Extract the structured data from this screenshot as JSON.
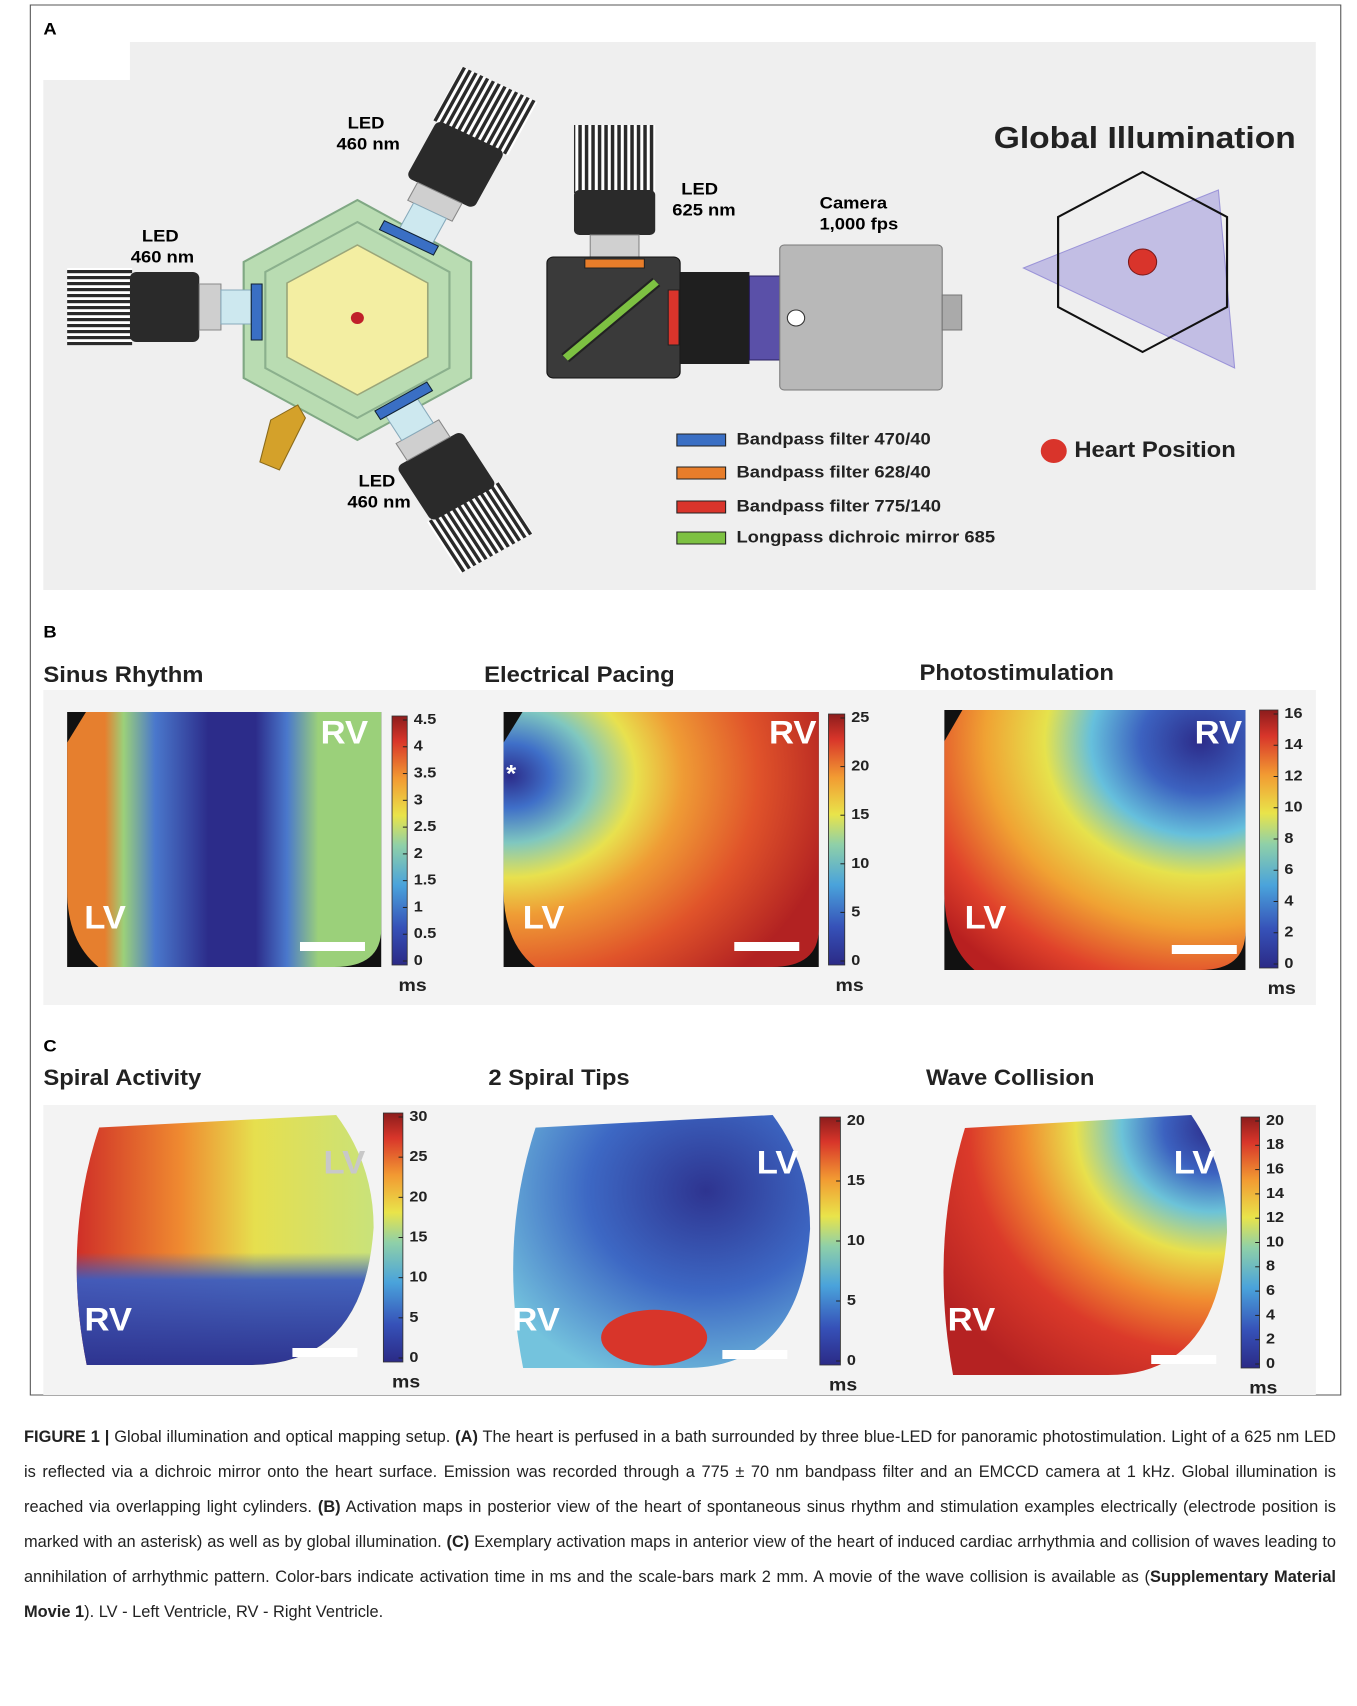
{
  "panel_a": {
    "label": "A",
    "title": "Global Illumination",
    "leds": [
      {
        "name": "LED",
        "wavelength": "460 nm"
      },
      {
        "name": "LED",
        "wavelength": "460 nm"
      },
      {
        "name": "LED",
        "wavelength": "460 nm"
      }
    ],
    "excitation_led": {
      "name": "LED",
      "wavelength": "625 nm"
    },
    "camera": {
      "name": "Camera",
      "rate": "1,000 fps"
    },
    "legend": [
      {
        "label": "Bandpass filter 470/40",
        "color": "#3a6fc4"
      },
      {
        "label": "Bandpass filter 628/40",
        "color": "#e87d2a"
      },
      {
        "label": "Bandpass filter 775/140",
        "color": "#d9342b"
      },
      {
        "label": "Longpass dichroic mirror 685",
        "color": "#7dc142"
      }
    ],
    "heart_position": "Heart Position"
  },
  "panel_b": {
    "label": "B",
    "maps": [
      {
        "title": "Sinus Rhythm",
        "ticks": [
          0,
          0.5,
          1,
          1.5,
          2,
          2.5,
          3,
          3.5,
          4,
          4.5
        ],
        "unit": "ms",
        "labels": {
          "rv": "RV",
          "lv": "LV"
        }
      },
      {
        "title": "Electrical Pacing",
        "ticks": [
          0,
          5,
          10,
          15,
          20,
          25
        ],
        "unit": "ms",
        "labels": {
          "rv": "RV",
          "lv": "LV"
        },
        "marker": "*"
      },
      {
        "title": "Photostimulation",
        "ticks": [
          0,
          2,
          4,
          6,
          8,
          10,
          12,
          14,
          16
        ],
        "unit": "ms",
        "labels": {
          "rv": "RV",
          "lv": "LV"
        }
      }
    ]
  },
  "panel_c": {
    "label": "C",
    "maps": [
      {
        "title": "Spiral Activity",
        "ticks": [
          0,
          5,
          10,
          15,
          20,
          25,
          30
        ],
        "unit": "ms",
        "labels": {
          "lv": "LV",
          "rv": "RV"
        }
      },
      {
        "title": "2 Spiral Tips",
        "ticks": [
          0,
          5,
          10,
          15,
          20
        ],
        "unit": "ms",
        "labels": {
          "lv": "LV",
          "rv": "RV"
        }
      },
      {
        "title": "Wave Collision",
        "ticks": [
          0,
          2,
          4,
          6,
          8,
          10,
          12,
          14,
          16,
          18,
          20
        ],
        "unit": "ms",
        "labels": {
          "lv": "LV",
          "rv": "RV"
        }
      }
    ]
  },
  "caption": {
    "label": "FIGURE 1 |",
    "parts": [
      " Global illumination and optical mapping setup. ",
      "(A)",
      " The heart is perfused in a bath surrounded by three blue-LED for panoramic photostimulation. Light of a 625 nm LED is reflected via a dichroic mirror onto the heart surface. Emission was recorded through a 775 ± 70 nm bandpass filter and an EMCCD camera at 1 kHz. Global illumination is reached via overlapping light cylinders. ",
      "(B)",
      " Activation maps in posterior view of the heart of spontaneous sinus rhythm and stimulation examples electrically (electrode position is marked with an asterisk) as well as by global illumination. ",
      "(C)",
      " Exemplary activation maps in anterior view of the heart of induced cardiac arrhythmia and collision of waves leading to annihilation of arrhythmic pattern. Color-bars indicate activation time in ms and the scale-bars mark 2 mm. A movie of the wave collision is available as (",
      "Supplementary Material Movie 1",
      "). LV - Left Ventricle, RV - Right Ventricle."
    ]
  }
}
